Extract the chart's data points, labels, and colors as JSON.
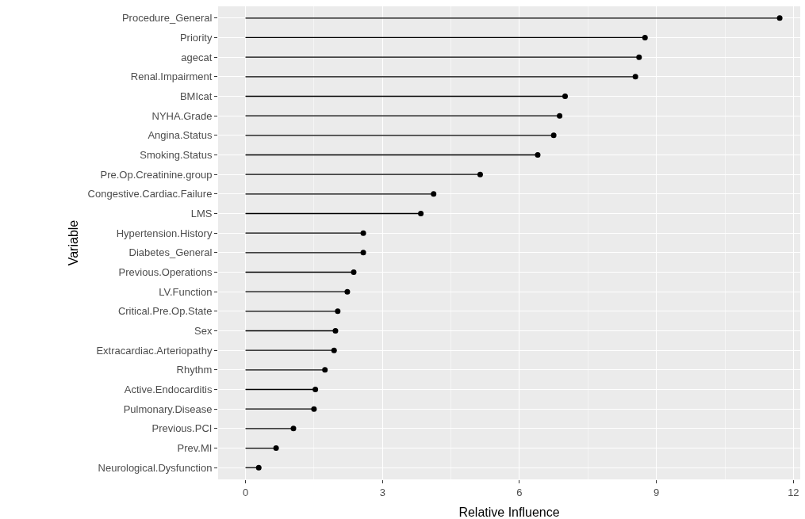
{
  "chart_data": {
    "type": "lollipop",
    "orientation": "horizontal",
    "xlabel": "Relative Influence",
    "ylabel": "Variable",
    "categories": [
      "Procedure_General",
      "Priority",
      "agecat",
      "Renal.Impairment",
      "BMIcat",
      "NYHA.Grade",
      "Angina.Status",
      "Smoking.Status",
      "Pre.Op.Creatinine.group",
      "Congestive.Cardiac.Failure",
      "LMS",
      "Hypertension.History",
      "Diabetes_General",
      "Previous.Operations",
      "LV.Function",
      "Critical.Pre.Op.State",
      "Sex",
      "Extracardiac.Arteriopathy",
      "Rhythm",
      "Active.Endocarditis",
      "Pulmonary.Disease",
      "Previous.PCI",
      "Prev.MI",
      "Neurological.Dysfunction"
    ],
    "values": [
      11.7,
      8.75,
      8.62,
      8.54,
      7.0,
      6.88,
      6.75,
      6.4,
      5.14,
      4.12,
      3.84,
      2.58,
      2.58,
      2.37,
      2.23,
      2.02,
      1.97,
      1.94,
      1.74,
      1.53,
      1.5,
      1.05,
      0.67,
      0.29
    ],
    "color": "#000000",
    "xlim": [
      -0.6,
      12.15
    ],
    "xticks": [
      0,
      3,
      6,
      9,
      12
    ],
    "grid": true,
    "marker": "circle"
  }
}
